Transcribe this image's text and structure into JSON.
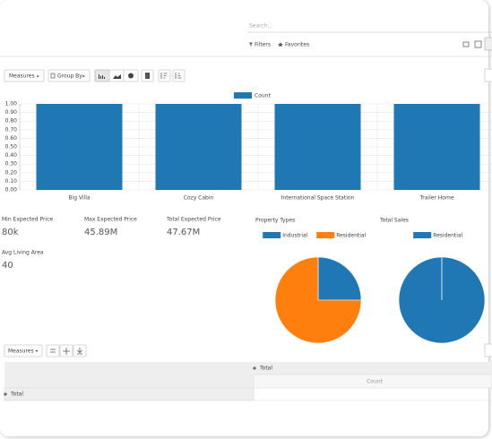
{
  "search": {
    "placeholder": "Search..."
  },
  "filters": {
    "filters": "Filters",
    "favorites": "Favorites"
  },
  "toolbar": {
    "measures": "Measures",
    "group_by": "Group By"
  },
  "kpis": [
    {
      "label": "Min Expected Price",
      "value": "80k"
    },
    {
      "label": "Max Expected Price",
      "value": "45.89M"
    },
    {
      "label": "Total Expected Price",
      "value": "47.67M"
    },
    {
      "label": "Avg Living Area",
      "value": "40"
    }
  ],
  "chart_data": [
    {
      "type": "bar",
      "legend": "Count",
      "color": "#1f77b4",
      "categories": [
        "Big Villa",
        "Cozy Cabin",
        "International Space Station",
        "Trailer Home"
      ],
      "values": [
        1,
        1,
        1,
        1
      ],
      "ylim": [
        0,
        1
      ],
      "yticks": [
        {
          "value": 0,
          "label": "0.00"
        },
        {
          "value": 0.1,
          "label": "0.10"
        },
        {
          "value": 0.2,
          "label": "0.20"
        },
        {
          "value": 0.3,
          "label": "0.30"
        },
        {
          "value": 0.4,
          "label": "0.40"
        },
        {
          "value": 0.5,
          "label": "0.50"
        },
        {
          "value": 0.6,
          "label": "0.60"
        },
        {
          "value": 0.7,
          "label": "0.70"
        },
        {
          "value": 0.8,
          "label": "0.80"
        },
        {
          "value": 0.9,
          "label": "0.90"
        },
        {
          "value": 1,
          "label": "1.00"
        }
      ],
      "grid": true
    },
    {
      "type": "pie",
      "title": "Property Types",
      "categories": [
        "Industrial",
        "Residential"
      ],
      "values": [
        1,
        3
      ],
      "colors": [
        "#1f77b4",
        "#ff7f0e"
      ]
    },
    {
      "type": "pie",
      "title": "Total Sales",
      "categories": [
        "Residential"
      ],
      "values": [
        1
      ],
      "colors": [
        "#1f77b4"
      ]
    }
  ],
  "pivot": {
    "measures": "Measures",
    "column_header": "Total",
    "measure": "Count",
    "row_header": "Total"
  }
}
